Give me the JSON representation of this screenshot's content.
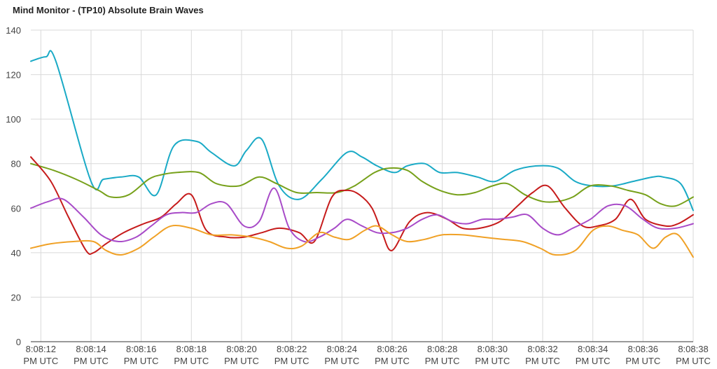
{
  "chart_data": {
    "type": "line",
    "title": "Mind Monitor - (TP10) Absolute Brain Waves",
    "xlabel": "",
    "ylabel": "",
    "ylim": [
      0,
      140
    ],
    "y_ticks": [
      "0",
      "20",
      "40",
      "60",
      "80",
      "100",
      "120",
      "140"
    ],
    "x_ticks": [
      {
        "value": 0,
        "line1": "8:08:12",
        "line2": "PM UTC"
      },
      {
        "value": 2,
        "line1": "8:08:14",
        "line2": "PM UTC"
      },
      {
        "value": 4,
        "line1": "8:08:16",
        "line2": "PM UTC"
      },
      {
        "value": 6,
        "line1": "8:08:18",
        "line2": "PM UTC"
      },
      {
        "value": 8,
        "line1": "8:08:20",
        "line2": "PM UTC"
      },
      {
        "value": 10,
        "line1": "8:08:22",
        "line2": "PM UTC"
      },
      {
        "value": 12,
        "line1": "8:08:24",
        "line2": "PM UTC"
      },
      {
        "value": 14,
        "line1": "8:08:26",
        "line2": "PM UTC"
      },
      {
        "value": 16,
        "line1": "8:08:28",
        "line2": "PM UTC"
      },
      {
        "value": 18,
        "line1": "8:08:30",
        "line2": "PM UTC"
      },
      {
        "value": 20,
        "line1": "8:08:32",
        "line2": "PM UTC"
      },
      {
        "value": 22,
        "line1": "8:08:34",
        "line2": "PM UTC"
      },
      {
        "value": 24,
        "line1": "8:08:36",
        "line2": "PM UTC"
      },
      {
        "value": 26,
        "line1": "8:08:38",
        "line2": "PM UTC"
      }
    ],
    "xlim": [
      -0.4,
      26
    ],
    "grid": true,
    "legend": "none",
    "series": [
      {
        "color": "#1AAAC6",
        "x": [
          -0.4,
          0.2,
          0.6,
          2.0,
          2.5,
          3.2,
          3.9,
          4.6,
          5.3,
          6.2,
          6.8,
          7.7,
          8.2,
          8.8,
          9.5,
          10.3,
          11.2,
          12.2,
          12.8,
          13.4,
          14.1,
          14.6,
          15.3,
          15.9,
          16.6,
          17.4,
          18.1,
          18.9,
          19.8,
          20.6,
          21.3,
          22.0,
          22.8,
          23.6,
          24.4,
          24.8,
          25.5,
          26.0
        ],
        "y": [
          126,
          128,
          126,
          72,
          73,
          74,
          74,
          66,
          88,
          90,
          85,
          79,
          86,
          91,
          70,
          64,
          73,
          85,
          83,
          79,
          76,
          79,
          80,
          76,
          76,
          74,
          72,
          77,
          79,
          78,
          72,
          70,
          70,
          72,
          74,
          74,
          71,
          59
        ]
      },
      {
        "color": "#77A11B",
        "x": [
          -0.4,
          0.5,
          1.4,
          2.3,
          2.8,
          3.5,
          4.3,
          4.8,
          5.4,
          6.3,
          7.0,
          7.9,
          8.7,
          9.4,
          10.2,
          11.0,
          11.8,
          12.5,
          13.3,
          13.9,
          14.6,
          15.2,
          15.9,
          16.6,
          17.3,
          18.0,
          18.6,
          19.3,
          20.0,
          20.6,
          21.2,
          21.9,
          22.7,
          23.4,
          24.1,
          24.7,
          25.3,
          26.0
        ],
        "y": [
          80,
          77,
          73,
          68,
          65,
          66,
          73,
          75,
          76,
          76,
          71,
          70,
          74,
          71,
          67,
          67,
          67,
          70,
          76,
          78,
          77,
          72,
          68,
          66,
          67,
          70,
          71,
          66,
          63,
          63,
          65,
          70,
          70,
          68,
          66,
          62,
          61,
          65
        ]
      },
      {
        "color": "#C61B1B",
        "x": [
          -0.4,
          0.4,
          1.1,
          1.8,
          2.1,
          2.6,
          3.3,
          4.1,
          4.8,
          5.4,
          6.0,
          6.6,
          7.4,
          8.1,
          8.8,
          9.5,
          10.3,
          10.9,
          11.6,
          12.2,
          12.7,
          13.2,
          13.6,
          14.0,
          14.7,
          15.4,
          16.2,
          16.8,
          17.5,
          18.3,
          19.0,
          19.6,
          20.2,
          20.9,
          21.6,
          22.2,
          22.9,
          23.5,
          24.1,
          24.9,
          25.4,
          26.0
        ],
        "y": [
          83,
          72,
          56,
          41,
          40,
          44,
          49,
          53,
          56,
          62,
          66,
          50,
          47,
          47,
          49,
          51,
          49,
          45,
          65,
          68,
          66,
          60,
          49,
          41,
          54,
          58,
          55,
          51,
          51,
          54,
          61,
          67,
          70,
          60,
          52,
          52,
          55,
          64,
          55,
          52,
          53,
          57
        ]
      },
      {
        "color": "#A84BC8",
        "x": [
          -0.4,
          0.3,
          0.9,
          1.7,
          2.4,
          3.1,
          3.8,
          4.4,
          5.0,
          5.6,
          6.2,
          6.8,
          7.4,
          8.1,
          8.7,
          9.3,
          9.9,
          10.5,
          11.1,
          11.7,
          12.2,
          12.8,
          13.4,
          14.0,
          14.6,
          15.2,
          15.8,
          16.4,
          17.0,
          17.6,
          18.2,
          18.8,
          19.4,
          20.0,
          20.6,
          21.2,
          21.9,
          22.6,
          23.3,
          24.0,
          24.6,
          25.3,
          26.0
        ],
        "y": [
          60,
          63,
          64,
          56,
          48,
          45,
          47,
          52,
          57,
          58,
          58,
          62,
          62,
          52,
          54,
          69,
          51,
          45,
          47,
          51,
          55,
          52,
          49,
          49,
          51,
          55,
          57,
          54,
          53,
          55,
          55,
          56,
          57,
          51,
          48,
          51,
          55,
          61,
          61,
          55,
          51,
          51,
          53
        ]
      },
      {
        "color": "#F0A126",
        "x": [
          -0.4,
          0.4,
          1.3,
          2.1,
          2.6,
          3.2,
          3.9,
          4.5,
          5.2,
          6.0,
          6.8,
          7.6,
          8.4,
          9.1,
          9.8,
          10.4,
          11.1,
          11.7,
          12.3,
          12.9,
          13.4,
          14.0,
          14.6,
          15.3,
          16.0,
          16.8,
          17.6,
          18.4,
          19.2,
          19.9,
          20.5,
          21.3,
          22.0,
          22.6,
          23.2,
          23.8,
          24.4,
          24.9,
          25.4,
          26.0
        ],
        "y": [
          42,
          44,
          45,
          45,
          41,
          39,
          42,
          47,
          52,
          51,
          48,
          48,
          47,
          45,
          42,
          43,
          49,
          47,
          46,
          50,
          52,
          48,
          45,
          46,
          48,
          48,
          47,
          46,
          45,
          42,
          39,
          41,
          50,
          52,
          50,
          48,
          42,
          47,
          48,
          38
        ]
      }
    ]
  }
}
